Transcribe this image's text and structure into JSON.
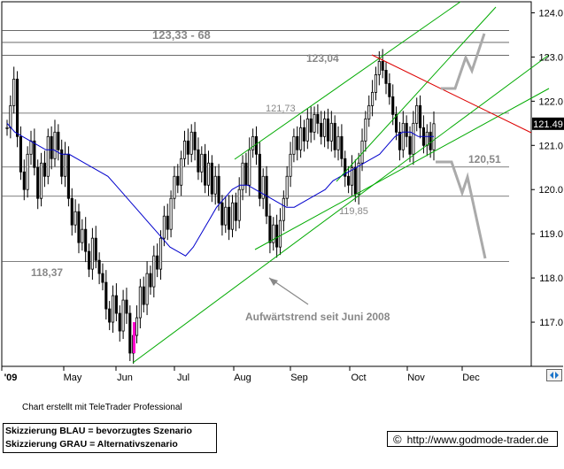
{
  "chart_data": {
    "type": "candlestick",
    "y_axis": {
      "position": "right",
      "ylim": [
        116.0,
        124.25
      ],
      "ticks": [
        117.0,
        118.0,
        119.0,
        120.0,
        121.0,
        122.0,
        123.0,
        124.0
      ],
      "tick_labels": [
        "117.0",
        "118.0",
        "119.0",
        "120.0",
        "121.0",
        "122.0",
        "123.0",
        "124.0"
      ]
    },
    "x_axis": {
      "tick_labels": [
        "'09",
        "May",
        "Jun",
        "Jul",
        "Aug",
        "Sep",
        "Oct",
        "Nov",
        "Dec"
      ],
      "tick_positions": [
        0,
        1,
        2,
        3,
        4,
        5,
        6,
        7,
        8
      ]
    },
    "last_price": "121.49",
    "ohlc_closes": [
      121.4,
      121.9,
      122.5,
      121.2,
      120.4,
      120.0,
      120.8,
      121.1,
      120.5,
      119.8,
      120.6,
      120.3,
      121.2,
      120.7,
      121.3,
      120.9,
      120.3,
      120.8,
      119.8,
      119.2,
      119.5,
      118.8,
      119.1,
      118.6,
      118.2,
      118.9,
      118.4,
      118.1,
      117.9,
      117.3,
      117.0,
      117.6,
      117.2,
      116.8,
      117.5,
      117.2,
      116.3,
      116.7,
      117.1,
      117.8,
      117.4,
      118.1,
      117.8,
      118.5,
      118.2,
      118.9,
      119.4,
      119.1,
      119.8,
      120.3,
      120.1,
      120.7,
      121.1,
      120.8,
      121.3,
      120.9,
      120.4,
      120.8,
      120.1,
      120.6,
      119.9,
      120.3,
      119.7,
      119.2,
      119.6,
      119.1,
      119.7,
      119.3,
      120.0,
      120.6,
      120.1,
      120.9,
      121.2,
      120.8,
      119.8,
      120.3,
      119.4,
      118.8,
      119.2,
      118.7,
      119.3,
      119.8,
      120.3,
      120.8,
      121.2,
      120.9,
      121.4,
      121.1,
      121.6,
      121.3,
      121.7,
      121.5,
      121.2,
      121.6,
      121.1,
      121.5,
      120.9,
      121.2,
      120.7,
      120.3,
      120.1,
      120.5,
      119.9,
      120.6,
      121.1,
      121.6,
      121.9,
      122.2,
      122.6,
      122.9,
      122.7,
      122.4,
      122.1,
      121.7,
      121.3,
      120.9,
      121.5,
      121.2,
      120.8,
      121.5,
      121.9,
      121.4,
      121.0,
      121.3,
      120.9,
      121.49
    ],
    "moving_average": [
      121.5,
      121.3,
      121.2,
      121.1,
      121.0,
      120.9,
      120.9,
      120.8,
      120.8,
      120.7,
      120.6,
      120.5,
      120.4,
      120.3,
      120.1,
      119.9,
      119.7,
      119.5,
      119.3,
      119.1,
      118.9,
      118.7,
      118.6,
      118.5,
      118.7,
      119.0,
      119.3,
      119.6,
      119.8,
      120.0,
      120.1,
      120.1,
      120.0,
      119.9,
      119.8,
      119.7,
      119.6,
      119.6,
      119.7,
      119.8,
      119.9,
      120.0,
      120.2,
      120.3,
      120.4,
      120.5,
      120.6,
      120.7,
      120.8,
      121.0,
      121.2,
      121.3,
      121.3,
      121.2,
      121.2,
      121.2
    ],
    "annotations": [
      {
        "text": "123,33 - 68",
        "value": 123.33
      },
      {
        "text": "123,04",
        "value": 123.04
      },
      {
        "text": "121,73",
        "value": 121.73
      },
      {
        "text": "120,51",
        "value": 120.51
      },
      {
        "text": "119,85",
        "value": 119.85
      },
      {
        "text": "118,37",
        "value": 118.37
      },
      {
        "text": "Aufwärtstrend seit Juni 2008"
      }
    ],
    "horizontal_levels": [
      123.6,
      123.33,
      123.04,
      121.73,
      120.51,
      119.85,
      118.37
    ],
    "colors": {
      "candles": "#000000",
      "moving_average": "#0000cc",
      "trend_channel": "#00aa00",
      "resistance": "#dd0000",
      "scenario": "#aaaaaa",
      "levels": "#555555",
      "highlight_candle": "#ff00cc",
      "annotation_text": "#888888"
    },
    "grid": false
  },
  "footer": {
    "created_with": "Chart erstellt mit TeleTrader Professional",
    "legend_blue": "Skizzierung BLAU = bevorzugtes Szenario",
    "legend_gray": "Skizzierung GRAU = Alternativszenario",
    "copyright_symbol": "©",
    "url": "http://www.godmode-trader.de"
  },
  "icons": {
    "scroll": "scroll-arrows-icon"
  }
}
